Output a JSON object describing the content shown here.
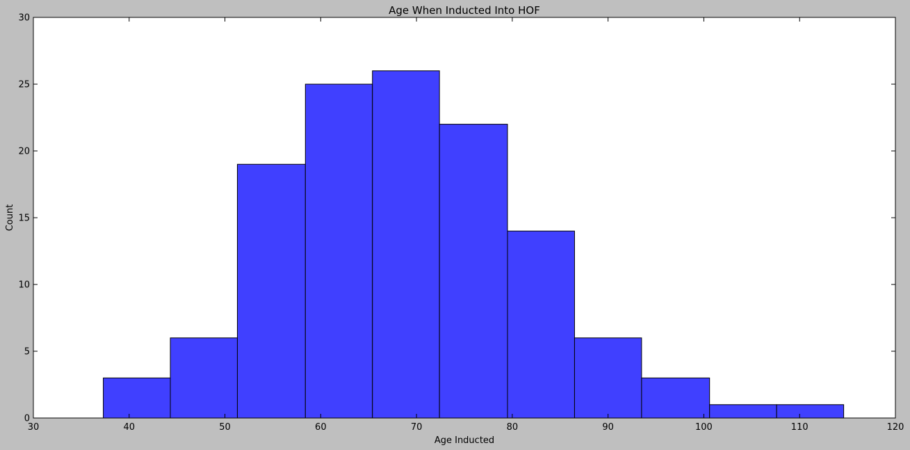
{
  "chart_data": {
    "type": "bar",
    "title": "Age When Inducted Into HOF",
    "xlabel": "Age Inducted",
    "ylabel": "Count",
    "xlim": [
      30,
      120
    ],
    "ylim": [
      0,
      30
    ],
    "xticks": [
      30,
      40,
      50,
      60,
      70,
      80,
      90,
      100,
      110,
      120
    ],
    "yticks": [
      0,
      5,
      10,
      15,
      20,
      25,
      30
    ],
    "bins": [
      {
        "x0": 37.3,
        "x1": 44.3,
        "count": 3
      },
      {
        "x0": 44.3,
        "x1": 51.3,
        "count": 6
      },
      {
        "x0": 51.3,
        "x1": 58.4,
        "count": 19
      },
      {
        "x0": 58.4,
        "x1": 65.4,
        "count": 25
      },
      {
        "x0": 65.4,
        "x1": 72.4,
        "count": 26
      },
      {
        "x0": 72.4,
        "x1": 79.5,
        "count": 22
      },
      {
        "x0": 79.5,
        "x1": 86.5,
        "count": 14
      },
      {
        "x0": 86.5,
        "x1": 93.5,
        "count": 6
      },
      {
        "x0": 93.5,
        "x1": 100.6,
        "count": 3
      },
      {
        "x0": 100.6,
        "x1": 107.6,
        "count": 1
      },
      {
        "x0": 107.6,
        "x1": 114.6,
        "count": 1
      }
    ],
    "bar_color": "#4040ff",
    "grid": false,
    "legend": "none"
  }
}
